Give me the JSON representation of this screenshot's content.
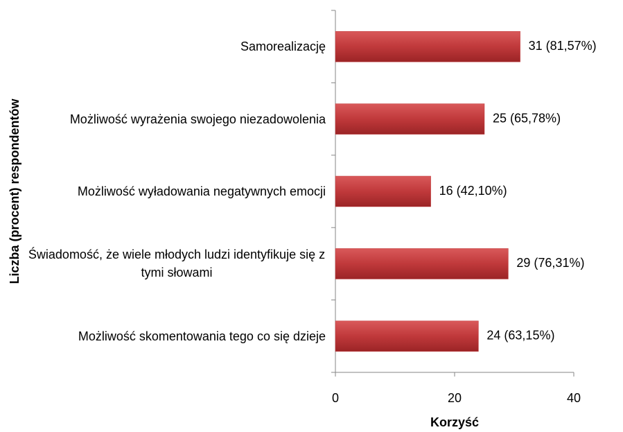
{
  "chart_data": {
    "type": "bar",
    "orientation": "horizontal",
    "x_label": "Korzyść",
    "y_label": "Liczba (procent) respondentów",
    "categories": [
      "Samorealizację",
      "Możliwość wyrażenia swojego niezadowolenia",
      "Możliwość wyładowania negatywnych emocji",
      "Świadomość, że wiele młodych ludzi identyfikuje się z tymi słowami",
      "Możliwość skomentowania tego co się dzieje"
    ],
    "values": [
      31,
      25,
      16,
      29,
      24
    ],
    "value_labels": [
      "31 (81,57%)",
      "25 (65,78%)",
      "16 (42,10%)",
      "29 (76,31%)",
      "24 (63,15%)"
    ],
    "color": "#c0393b",
    "xlim": [
      0,
      40
    ],
    "xticks": [
      0,
      20,
      40
    ],
    "grid": false
  }
}
